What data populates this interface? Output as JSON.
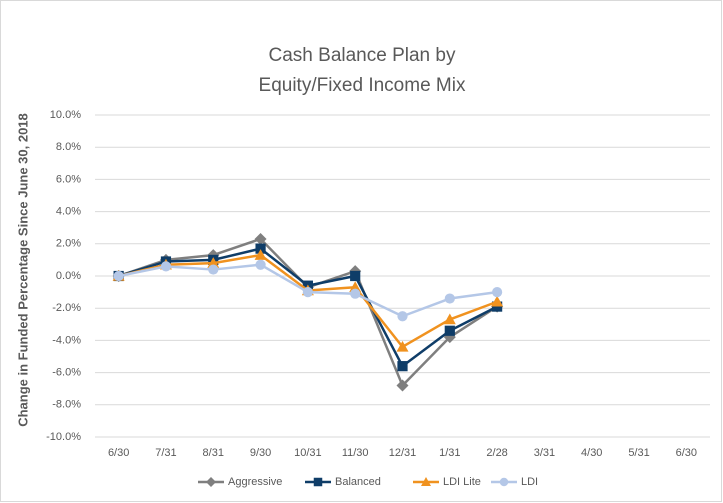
{
  "chart_data": {
    "type": "line",
    "title": [
      "Cash Balance Plan by",
      "Equity/Fixed Income Mix"
    ],
    "y_label": "Change in Funded Percentage Since June 30, 2018",
    "categories": [
      "6/30",
      "7/31",
      "8/31",
      "9/30",
      "10/31",
      "11/30",
      "12/31",
      "1/31",
      "2/28",
      "3/31",
      "4/30",
      "5/31",
      "6/30"
    ],
    "series": [
      {
        "name": "Aggressive",
        "color": "#7f7f7f",
        "marker": "diamond",
        "values": [
          0,
          1.0,
          1.3,
          2.3,
          -0.7,
          0.3,
          -6.8,
          -3.8,
          -1.9,
          null,
          null,
          null,
          null
        ]
      },
      {
        "name": "Balanced",
        "color": "#0f3d68",
        "marker": "square",
        "values": [
          0,
          0.9,
          1.0,
          1.7,
          -0.6,
          0.0,
          -5.6,
          -3.4,
          -1.9,
          null,
          null,
          null,
          null
        ]
      },
      {
        "name": "LDI Lite",
        "color": "#f0921f",
        "marker": "triangle",
        "values": [
          0,
          0.7,
          0.8,
          1.3,
          -0.9,
          -0.7,
          -4.4,
          -2.7,
          -1.6,
          null,
          null,
          null,
          null
        ]
      },
      {
        "name": "LDI",
        "color": "#b4c7e7",
        "marker": "circle",
        "values": [
          0,
          0.6,
          0.4,
          0.7,
          -1.0,
          -1.1,
          -2.5,
          -1.4,
          -1.0,
          null,
          null,
          null,
          null
        ]
      }
    ],
    "ylim": [
      -10,
      10
    ],
    "yticks": [
      {
        "value": -10,
        "label": "-10.0%"
      },
      {
        "value": -8,
        "label": "-8.0%"
      },
      {
        "value": -6,
        "label": "-6.0%"
      },
      {
        "value": -4,
        "label": "-4.0%"
      },
      {
        "value": -2,
        "label": "-2.0%"
      },
      {
        "value": 0,
        "label": "0.0%"
      },
      {
        "value": 2,
        "label": "2.0%"
      },
      {
        "value": 4,
        "label": "4.0%"
      },
      {
        "value": 6,
        "label": "6.0%"
      },
      {
        "value": 8,
        "label": "8.0%"
      },
      {
        "value": 10,
        "label": "10.0%"
      }
    ],
    "grid": true,
    "legend": "bottom"
  }
}
